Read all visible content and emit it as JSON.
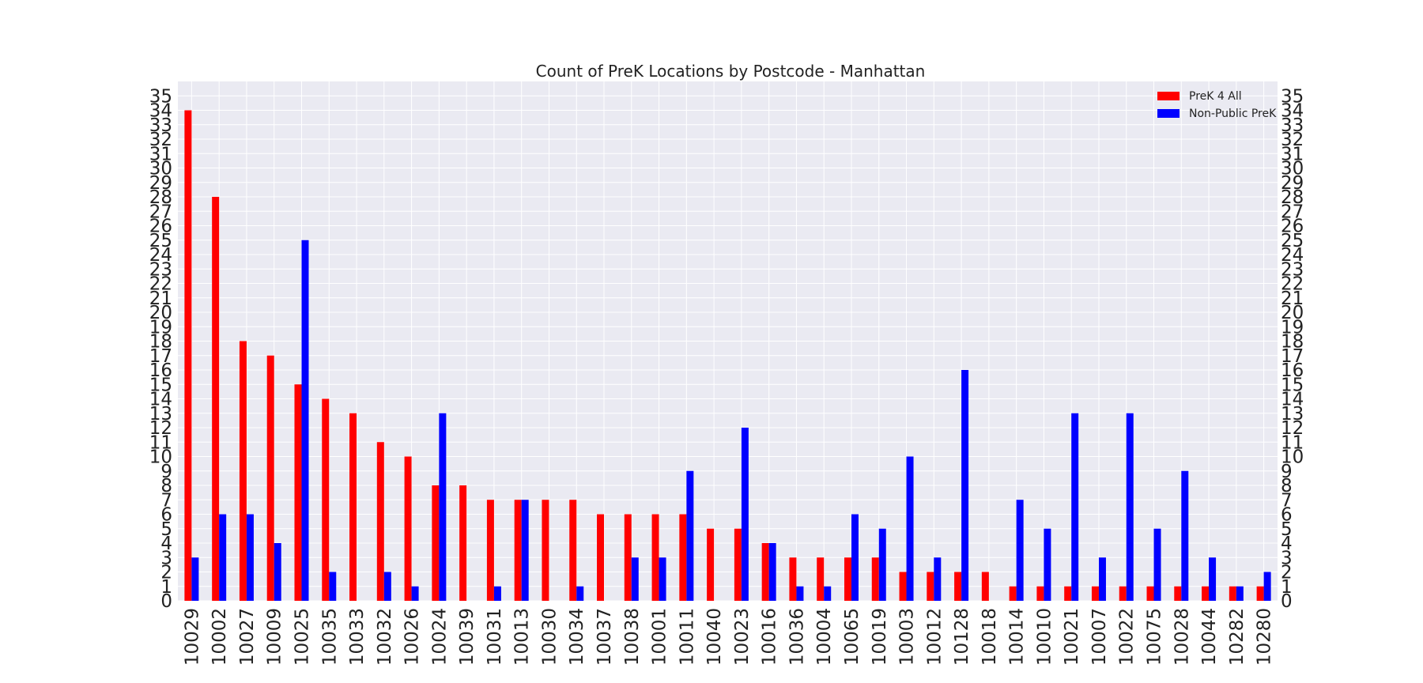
{
  "chart_data": {
    "type": "bar",
    "title": "Count of PreK Locations by Postcode - Manhattan",
    "xlabel": "",
    "ylabel": "",
    "ylim": [
      0,
      36
    ],
    "yticks": [
      0,
      1,
      2,
      3,
      4,
      5,
      6,
      7,
      8,
      9,
      10,
      11,
      12,
      13,
      14,
      15,
      16,
      17,
      18,
      19,
      20,
      21,
      22,
      23,
      24,
      25,
      26,
      27,
      28,
      29,
      30,
      31,
      32,
      33,
      34,
      35
    ],
    "grid": true,
    "legend_position": "top-right",
    "categories": [
      "10029",
      "10002",
      "10027",
      "10009",
      "10025",
      "10035",
      "10033",
      "10032",
      "10026",
      "10024",
      "10039",
      "10031",
      "10013",
      "10030",
      "10034",
      "10037",
      "10038",
      "10001",
      "10011",
      "10040",
      "10023",
      "10016",
      "10036",
      "10004",
      "10065",
      "10019",
      "10003",
      "10012",
      "10128",
      "10018",
      "10014",
      "10010",
      "10021",
      "10007",
      "10022",
      "10075",
      "10028",
      "10044",
      "10282",
      "10280"
    ],
    "series": [
      {
        "name": "PreK 4 All",
        "color": "#ff0000",
        "values": [
          34,
          28,
          18,
          17,
          15,
          14,
          13,
          11,
          10,
          8,
          8,
          7,
          7,
          7,
          7,
          6,
          6,
          6,
          6,
          5,
          5,
          4,
          3,
          3,
          3,
          3,
          2,
          2,
          2,
          2,
          1,
          1,
          1,
          1,
          1,
          1,
          1,
          1,
          1,
          1
        ]
      },
      {
        "name": "Non-Public PreK",
        "color": "#0000ff",
        "values": [
          3,
          6,
          6,
          4,
          25,
          2,
          0,
          2,
          1,
          13,
          0,
          1,
          7,
          0,
          1,
          0,
          3,
          3,
          9,
          0,
          12,
          4,
          1,
          1,
          6,
          5,
          10,
          3,
          16,
          0,
          7,
          5,
          13,
          3,
          13,
          5,
          9,
          3,
          1,
          2
        ]
      }
    ]
  }
}
